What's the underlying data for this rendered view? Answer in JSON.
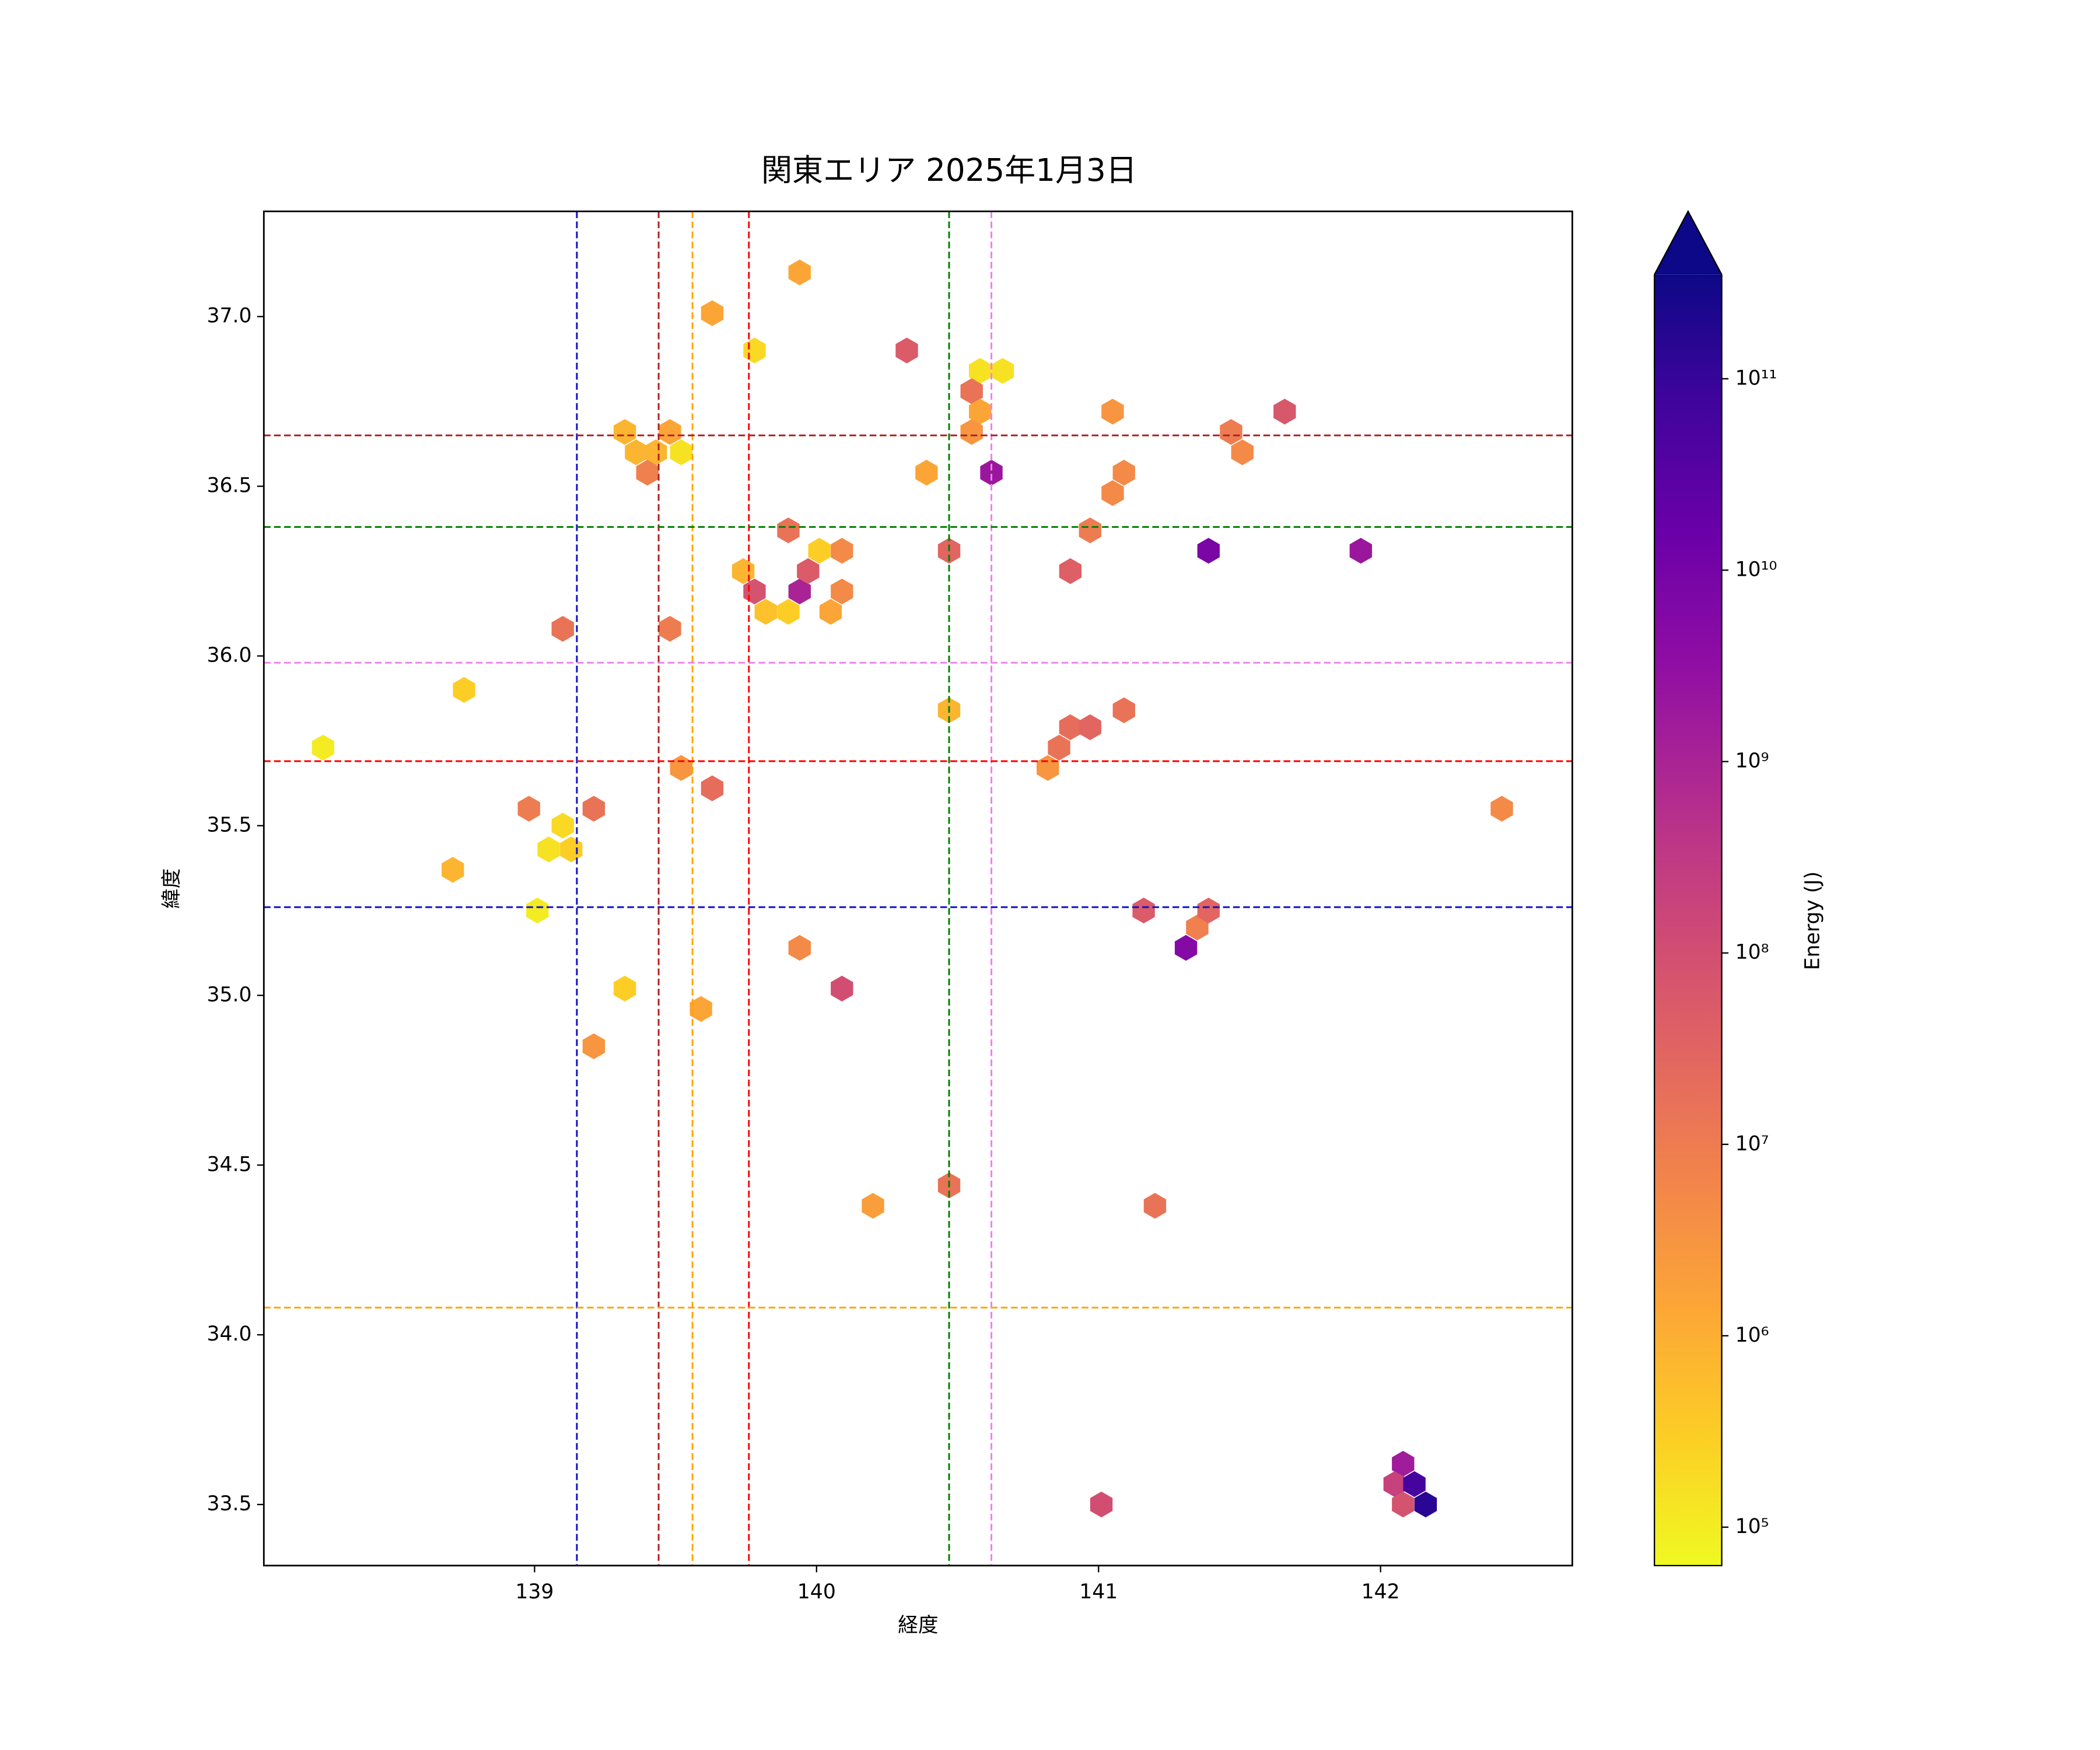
{
  "chart_data": {
    "type": "hexbin",
    "title": "関東エリア 2025年1月3日",
    "xlabel": "経度",
    "ylabel": "緯度",
    "xlim": [
      138.04,
      142.68
    ],
    "ylim": [
      33.32,
      37.31
    ],
    "xticks": [
      139,
      140,
      141,
      142
    ],
    "yticks": [
      33.5,
      {
        "value": 34,
        "label": "34.0"
      },
      34.5,
      {
        "value": 35,
        "label": "35.0"
      },
      35.5,
      {
        "value": 36,
        "label": "36.0"
      },
      36.5,
      {
        "value": 37,
        "label": "37.0"
      }
    ],
    "x": [
      138.25,
      138.75,
      138.71,
      138.98,
      139.1,
      139.1,
      139.05,
      139.13,
      139.01,
      139.21,
      139.21,
      139.32,
      139.32,
      139.36,
      139.43,
      139.4,
      139.48,
      139.52,
      139.48,
      139.52,
      139.63,
      139.59,
      139.63,
      139.78,
      139.94,
      139.74,
      139.78,
      139.82,
      139.9,
      139.9,
      139.94,
      139.97,
      140.01,
      140.05,
      140.09,
      140.09,
      139.94,
      140.09,
      140.2,
      140.32,
      140.39,
      140.47,
      140.47,
      140.47,
      140.58,
      140.66,
      140.55,
      140.58,
      140.55,
      140.62,
      140.82,
      140.86,
      140.9,
      140.97,
      140.9,
      140.97,
      141.05,
      141.09,
      141.05,
      141.09,
      141.16,
      141.2,
      141.35,
      141.39,
      141.31,
      141.39,
      141.47,
      141.51,
      141.66,
      141.93,
      142.43,
      141.01,
      142.08,
      142.05,
      142.12,
      142.08,
      142.16
    ],
    "y": [
      35.73,
      35.9,
      35.37,
      35.55,
      36.08,
      35.5,
      35.43,
      35.43,
      35.25,
      35.55,
      34.85,
      35.02,
      36.66,
      36.6,
      36.6,
      36.54,
      36.66,
      36.6,
      36.08,
      35.67,
      35.61,
      34.96,
      37.01,
      36.9,
      37.13,
      36.25,
      36.19,
      36.13,
      36.13,
      36.37,
      36.19,
      36.25,
      36.31,
      36.13,
      36.19,
      36.31,
      35.14,
      35.02,
      34.38,
      36.9,
      36.54,
      36.31,
      35.84,
      34.44,
      36.84,
      36.84,
      36.78,
      36.72,
      36.66,
      36.54,
      35.67,
      35.73,
      35.79,
      35.79,
      36.25,
      36.37,
      36.48,
      36.54,
      36.72,
      35.84,
      35.25,
      34.38,
      35.2,
      35.25,
      35.14,
      36.31,
      36.66,
      36.6,
      36.72,
      36.31,
      35.55,
      33.5,
      33.62,
      33.56,
      33.56,
      33.5,
      33.5
    ],
    "values": [
      100000,
      300000,
      800000,
      10000000,
      15000000,
      200000,
      150000,
      300000,
      100000,
      15000000,
      3000000,
      300000,
      800000,
      800000,
      800000,
      8000000,
      1500000,
      150000,
      10000000,
      3000000,
      20000000,
      1500000,
      1500000,
      200000,
      1500000,
      800000,
      80000000,
      500000,
      300000,
      15000000,
      1000000000,
      50000000,
      300000,
      1500000,
      5000000,
      5000000,
      5000000,
      100000000,
      2000000,
      50000000,
      1500000,
      30000000,
      800000,
      15000000,
      150000,
      150000,
      15000000,
      1500000,
      3000000,
      2000000000,
      3000000,
      15000000,
      20000000,
      30000000,
      40000000,
      10000000,
      5000000,
      5000000,
      3000000,
      15000000,
      50000000,
      15000000,
      8000000,
      30000000,
      5000000000,
      8000000000,
      10000000,
      5000000,
      60000000,
      2000000000,
      5000000,
      100000000,
      1500000000,
      200000000,
      60000000000,
      80000000,
      150000000000
    ],
    "colormap": "plasma_r",
    "log_color": true,
    "clim": [
      63000,
      350000000000
    ],
    "colorbar_extend": "max",
    "colorbar_label": "Energy (J)",
    "colorbar_ticks": [
      {
        "value": 100000,
        "label": "10⁵"
      },
      {
        "value": 1000000,
        "label": "10⁶"
      },
      {
        "value": 10000000,
        "label": "10⁷"
      },
      {
        "value": 100000000,
        "label": "10⁸"
      },
      {
        "value": 1000000000,
        "label": "10⁹"
      },
      {
        "value": 10000000000,
        "label": "10¹⁰"
      },
      {
        "value": 100000000000,
        "label": "10¹¹"
      }
    ],
    "vlines": [
      {
        "value": 139.15,
        "color": "#1010c8"
      },
      {
        "value": 139.44,
        "color": "#b22222"
      },
      {
        "value": 139.56,
        "color": "orange"
      },
      {
        "value": 139.76,
        "color": "red"
      },
      {
        "value": 140.47,
        "color": "green"
      },
      {
        "value": 140.62,
        "color": "violet"
      }
    ],
    "hlines": [
      {
        "value": 36.65,
        "color": "#b22222"
      },
      {
        "value": 36.38,
        "color": "green"
      },
      {
        "value": 35.98,
        "color": "violet"
      },
      {
        "value": 35.69,
        "color": "red"
      },
      {
        "value": 35.26,
        "color": "#1010c8"
      },
      {
        "value": 34.08,
        "color": "orange"
      }
    ]
  }
}
